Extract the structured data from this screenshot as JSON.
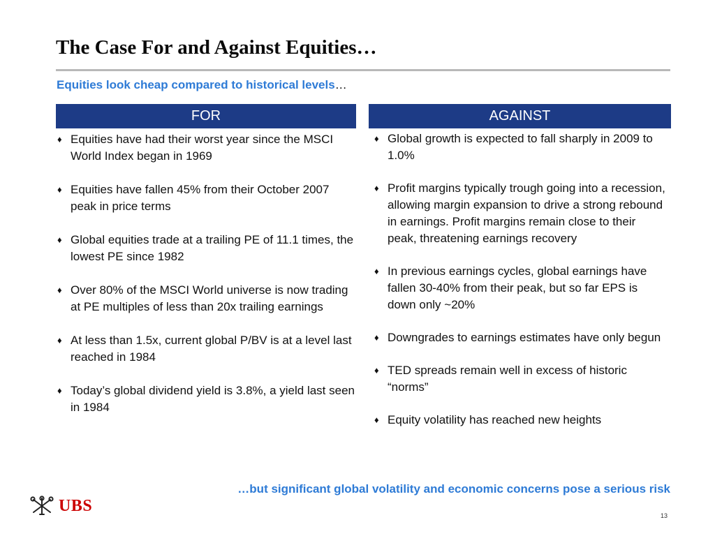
{
  "slide": {
    "title": "The Case For and Against Equities…",
    "subtitle": "Equities look cheap compared to historical levels",
    "subtitle_suffix": "…",
    "conclusion": "…but significant global volatility and economic concerns pose a serious risk",
    "page_number": "13"
  },
  "columns": {
    "for": {
      "header": "FOR",
      "bullet": "♦",
      "items": [
        "Equities have had their worst year since the MSCI World Index began in 1969",
        "Equities have fallen 45% from their October 2007 peak in price terms",
        "Global equities trade at a trailing PE of 11.1 times, the lowest PE since 1982",
        "Over 80% of the MSCI World universe is now trading at PE multiples of less than 20x trailing earnings",
        "At less than 1.5x, current global P/BV is at a level last reached in 1984",
        "Today’s global dividend yield is 3.8%, a yield last seen in 1984"
      ]
    },
    "against": {
      "header": "AGAINST",
      "bullet": "♦",
      "items": [
        "Global growth is expected to fall sharply in 2009 to 1.0%",
        "Profit margins typically trough going into a recession, allowing margin expansion to drive a strong rebound in earnings.  Profit margins remain close to their peak, threatening earnings recovery",
        "In previous earnings cycles, global earnings have fallen 30-40% from their peak, but so far EPS is down only ~20%",
        "Downgrades to earnings estimates have only begun",
        "TED spreads remain well in excess of historic “norms”",
        "Equity volatility has reached new heights"
      ]
    }
  },
  "logo": {
    "text": "UBS",
    "icon": "ubs-keys-icon",
    "color": "#cc0000"
  },
  "colors": {
    "header_bg": "#1d3b86",
    "accent_blue": "#2e7bd6",
    "rule": "#b8b8b8"
  }
}
